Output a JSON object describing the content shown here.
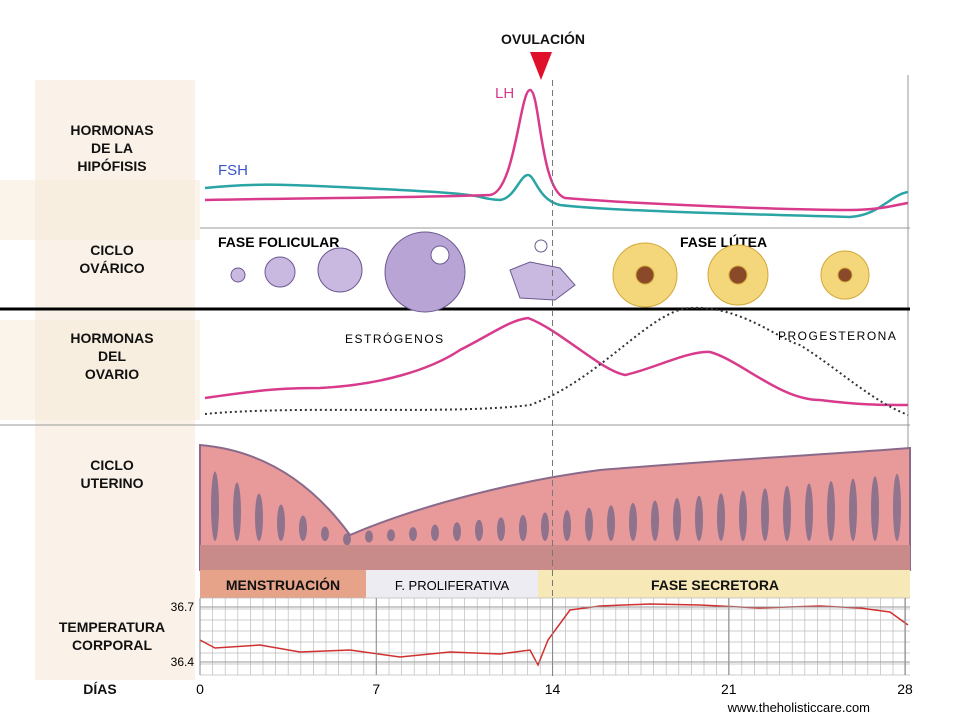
{
  "header": {
    "ovulation": "OVULACIÓN"
  },
  "rows": [
    {
      "label": [
        "HORMONAS",
        "DE LA",
        "HIPÓFISIS"
      ]
    },
    {
      "label": [
        "CICLO",
        "OVÁRICO"
      ]
    },
    {
      "label": [
        "HORMONAS",
        "DEL",
        "OVARIO"
      ]
    },
    {
      "label": [
        "CICLO",
        "UTERINO"
      ]
    },
    {
      "label": [
        "TEMPERATURA",
        "CORPORAL"
      ]
    }
  ],
  "hormones": {
    "fsh": "FSH",
    "lh": "LH",
    "estrogen": "ESTRÓGENOS",
    "progesterone": "PROGESTERONA"
  },
  "ovarian_phases": [
    "FASE FOLICULAR",
    "FASE LÚTEA"
  ],
  "uterine_phases": [
    "MENSTRUACIÓN",
    "F. PROLIFERATIVA",
    "FASE SECRETORA"
  ],
  "temperature": {
    "ticks": [
      36.7,
      36.4
    ]
  },
  "days": {
    "label": "DÍAS",
    "ticks": [
      0,
      7,
      14,
      21,
      28
    ]
  },
  "credit": "www.theholisticcare.com"
}
